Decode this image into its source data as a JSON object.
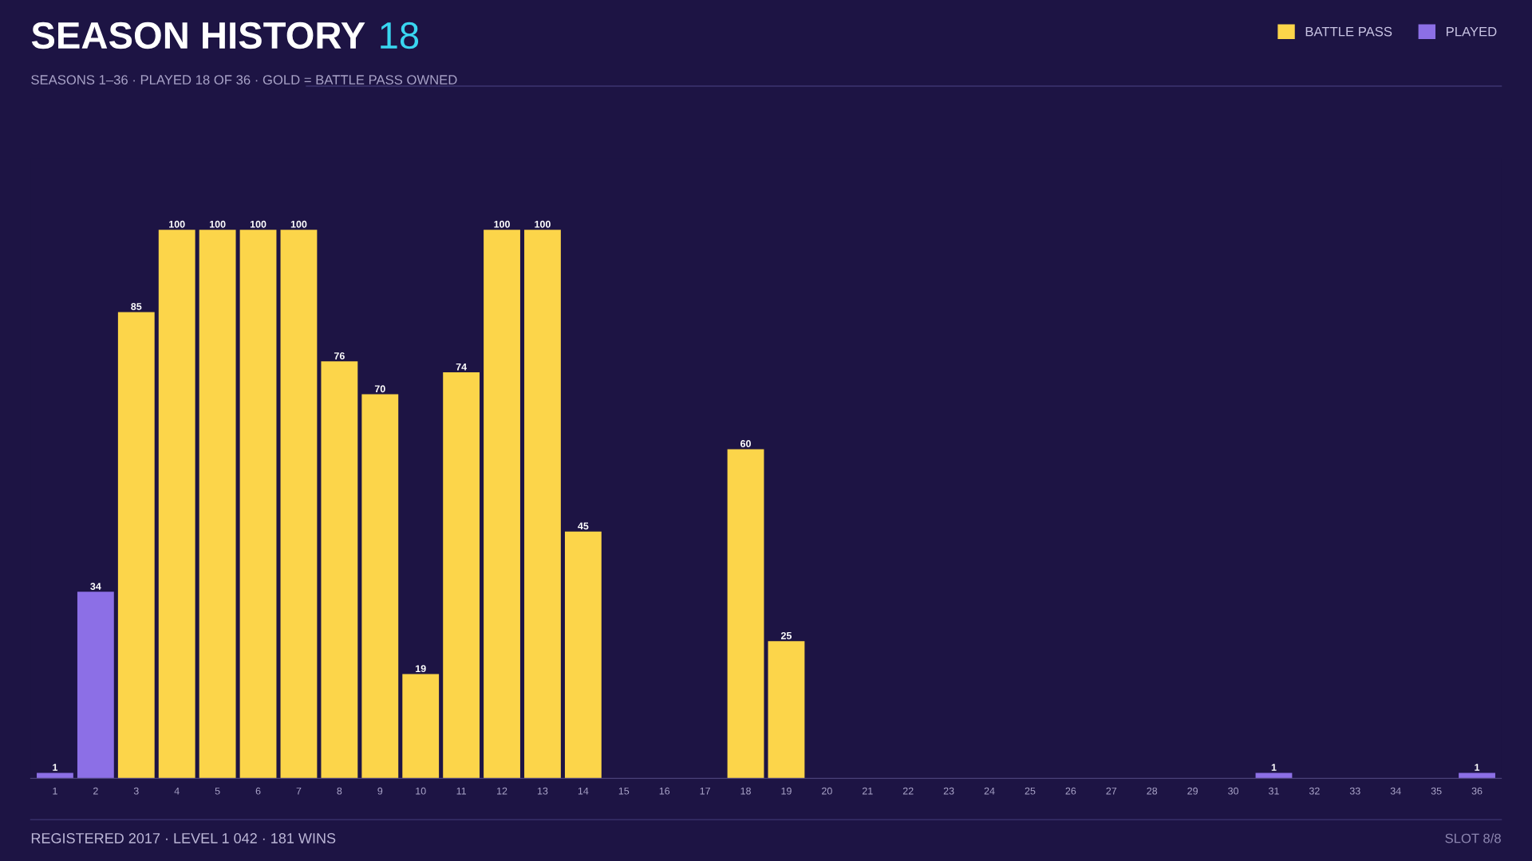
{
  "chart_data": {
    "type": "bar",
    "title": "SEASON HISTORY",
    "subtitle": "SEASONS 1–36 · PLAYED 18 OF 36 · GOLD = BATTLE PASS OWNED",
    "annotations": [
      "18",
      "REGISTERED 2017 · LEVEL 1 042 · 181 WINS",
      "SLOT 8/8"
    ],
    "categories": [
      "1",
      "2",
      "3",
      "4",
      "5",
      "6",
      "7",
      "8",
      "9",
      "10",
      "11",
      "12",
      "13",
      "14",
      "15",
      "16",
      "17",
      "18",
      "19",
      "20",
      "21",
      "22",
      "23",
      "24",
      "25",
      "26",
      "27",
      "28",
      "29",
      "30",
      "31",
      "32",
      "33",
      "34",
      "35",
      "36"
    ],
    "series": [
      {
        "name": "BATTLE PASS",
        "color": "#fcd54a",
        "values": [
          null,
          null,
          85,
          100,
          100,
          100,
          100,
          76,
          70,
          19,
          74,
          100,
          100,
          45,
          null,
          null,
          null,
          60,
          25,
          null,
          null,
          null,
          null,
          null,
          null,
          null,
          null,
          null,
          null,
          null,
          null,
          null,
          null,
          null,
          null,
          null
        ]
      },
      {
        "name": "PLAYED",
        "color": "#8c6fe6",
        "values": [
          1,
          34,
          null,
          null,
          null,
          null,
          null,
          null,
          null,
          null,
          null,
          null,
          null,
          null,
          null,
          null,
          null,
          null,
          null,
          null,
          null,
          null,
          null,
          null,
          null,
          null,
          null,
          null,
          null,
          null,
          1,
          null,
          null,
          null,
          null,
          1
        ]
      }
    ],
    "data_labels": true,
    "legend": "top right",
    "grid": false
  }
}
